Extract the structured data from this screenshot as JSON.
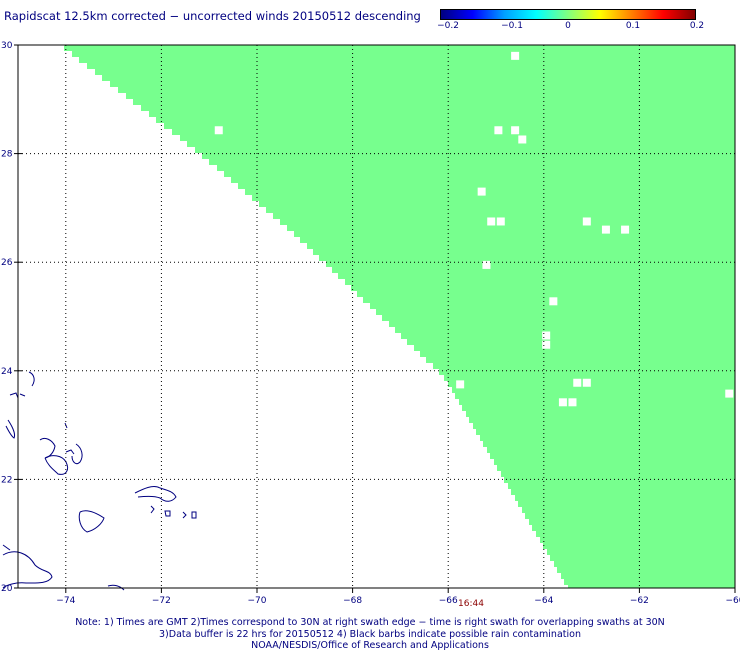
{
  "title": "Rapidscat 12.5km corrected − uncorrected winds 20150512 descending",
  "colorbar": {
    "labels": [
      "−0.2",
      "−0.1",
      "0",
      "0.1",
      "0.2"
    ],
    "min": -0.2,
    "max": 0.2,
    "colors": [
      "#000080",
      "#0000ff",
      "#00a0ff",
      "#00ffff",
      "#80ff80",
      "#ffff00",
      "#ff8000",
      "#ff0000",
      "#800000"
    ]
  },
  "map": {
    "lon_range": [
      -75,
      -60
    ],
    "lat_range": [
      20,
      30
    ],
    "lon_ticks": [
      "−74",
      "−72",
      "−70",
      "−68",
      "−66",
      "−64",
      "−62",
      "−60"
    ],
    "lat_ticks": [
      "20",
      "22",
      "24",
      "26",
      "28",
      "30"
    ],
    "grid": true,
    "swath_color": "#77ff8e",
    "coast_color": "#000080",
    "swath_edge": [
      [
        -74.12,
        30
      ],
      [
        -71.2,
        28.0
      ],
      [
        -69.2,
        26.5
      ],
      [
        -66.1,
        23.9
      ],
      [
        -63.5,
        20
      ]
    ],
    "data_gaps": [
      [
        -70.8,
        28.43
      ],
      [
        -64.6,
        29.8
      ],
      [
        -64.95,
        28.43
      ],
      [
        -64.6,
        28.43
      ],
      [
        -64.45,
        28.26
      ],
      [
        -65.3,
        27.3
      ],
      [
        -64.9,
        26.75
      ],
      [
        -65.1,
        26.75
      ],
      [
        -63.1,
        26.75
      ],
      [
        -62.7,
        26.6
      ],
      [
        -62.3,
        26.6
      ],
      [
        -65.2,
        25.95
      ],
      [
        -63.8,
        25.28
      ],
      [
        -63.95,
        24.65
      ],
      [
        -63.95,
        24.48
      ],
      [
        -65.75,
        23.75
      ],
      [
        -63.3,
        23.78
      ],
      [
        -63.1,
        23.78
      ],
      [
        -63.6,
        23.42
      ],
      [
        -63.4,
        23.42
      ],
      [
        -60.12,
        23.58
      ]
    ]
  },
  "time_label": "16:44",
  "notes": [
    "Note: 1) Times are GMT 2)Times correspond to 30N at right swath edge − time is right swath for overlapping swaths at 30N",
    "3)Data buffer is 22 hrs for 20150512 4) Black barbs indicate possible rain contamination",
    "NOAA/NESDIS/Office of Research and Applications"
  ]
}
